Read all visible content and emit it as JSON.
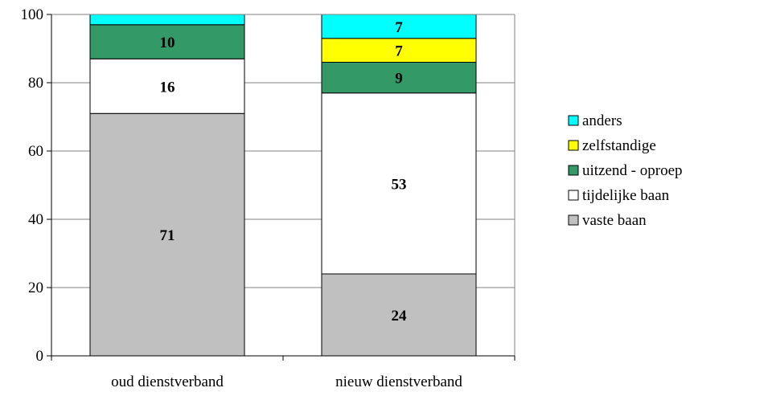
{
  "chart_data": {
    "type": "bar",
    "stacked": true,
    "categories": [
      "oud dienstverband",
      "nieuw dienstverband"
    ],
    "series": [
      {
        "name": "vaste baan",
        "color": "#c0c0c0",
        "values": [
          71,
          24
        ]
      },
      {
        "name": "tijdelijke baan",
        "color": "#ffffff",
        "values": [
          16,
          53
        ]
      },
      {
        "name": "uitzend - oproep",
        "color": "#339966",
        "values": [
          10,
          9
        ]
      },
      {
        "name": "zelfstandige",
        "color": "#ffff00",
        "values": [
          0,
          7
        ]
      },
      {
        "name": "anders",
        "color": "#00ffff",
        "values": [
          3,
          7
        ]
      }
    ],
    "data_labels": [
      [
        "71",
        "24"
      ],
      [
        "16",
        "53"
      ],
      [
        "10",
        "9"
      ],
      [
        "",
        "7"
      ],
      [
        "",
        "7"
      ]
    ],
    "y_ticks": [
      "0",
      "20",
      "40",
      "60",
      "80",
      "100"
    ],
    "ylim": [
      0,
      100
    ],
    "grid": true,
    "legend_position": "right",
    "legend_order": [
      "anders",
      "zelfstandige",
      "uitzend - oproep",
      "tijdelijke baan",
      "vaste baan"
    ]
  }
}
